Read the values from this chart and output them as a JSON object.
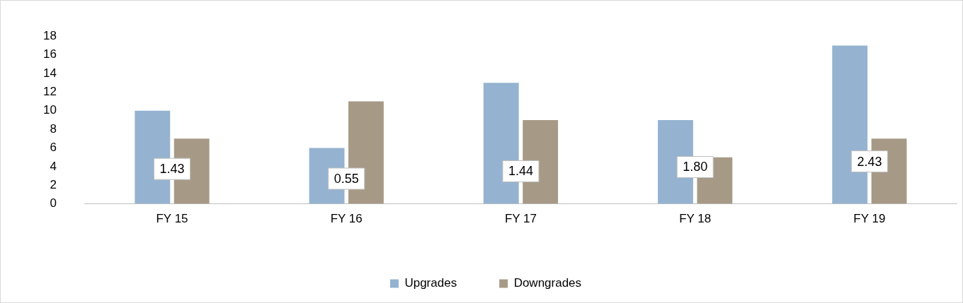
{
  "chart_data": {
    "type": "bar",
    "categories": [
      "FY 15",
      "FY 16",
      "FY 17",
      "FY 18",
      "FY 19"
    ],
    "series": [
      {
        "name": "Upgrades",
        "color": "#95b3d0",
        "values": [
          10,
          6,
          13,
          9,
          17
        ]
      },
      {
        "name": "Downgrades",
        "color": "#a69a87",
        "values": [
          7,
          11,
          9,
          5,
          7
        ]
      }
    ],
    "ylim": [
      0,
      18
    ],
    "yticks": [
      0,
      2,
      4,
      6,
      8,
      10,
      12,
      14,
      16,
      18
    ],
    "grid": false,
    "legend": "bottom",
    "annotations": [
      {
        "text": "1.43",
        "x": "FY 15",
        "y": 3.75
      },
      {
        "text": "0.55",
        "x": "FY 16",
        "y": 2.7
      },
      {
        "text": "1.44",
        "x": "FY 17",
        "y": 3.5
      },
      {
        "text": "1.80",
        "x": "FY 18",
        "y": 3.95
      },
      {
        "text": "2.43",
        "x": "FY 19",
        "y": 4.55
      }
    ]
  }
}
